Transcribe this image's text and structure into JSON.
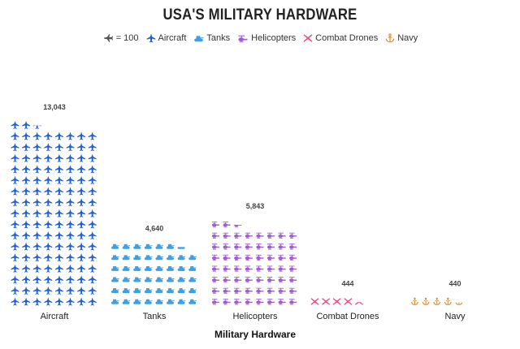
{
  "chart_data": {
    "type": "bar",
    "title": "USA'S MILITARY HARDWARE",
    "xlabel": "Military Hardware",
    "ylabel": "",
    "unit_legend": "= 100",
    "categories": [
      "Aircraft",
      "Tanks",
      "Helicopters",
      "Combat Drones",
      "Navy"
    ],
    "values": [
      13043,
      4640,
      5843,
      444,
      440
    ],
    "value_labels": [
      "13,043",
      "4,640",
      "5,843",
      "444",
      "440"
    ],
    "icon_unit": 100,
    "icons_per_row": 8,
    "series": [
      {
        "name": "Aircraft",
        "color": "#1f5fd6",
        "icon": "jet-icon"
      },
      {
        "name": "Tanks",
        "color": "#3f9fe0",
        "icon": "tank-icon"
      },
      {
        "name": "Helicopters",
        "color": "#a25bd6",
        "icon": "helicopter-icon"
      },
      {
        "name": "Combat Drones",
        "color": "#e8508a",
        "icon": "drone-icon"
      },
      {
        "name": "Navy",
        "color": "#e0882a",
        "icon": "anchor-icon"
      }
    ],
    "unit_icon_color": "#555555"
  }
}
